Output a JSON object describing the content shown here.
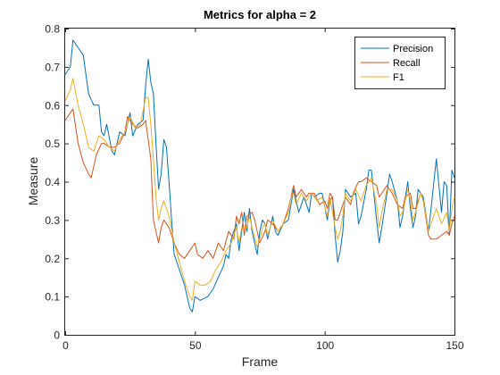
{
  "chart_data": {
    "type": "line",
    "title": "Metrics for alpha = 2",
    "xlabel": "Frame",
    "ylabel": "Measure",
    "xlim": [
      0,
      150
    ],
    "ylim": [
      0,
      0.8
    ],
    "xticks": [
      "0",
      "50",
      "100",
      "150"
    ],
    "yticks": [
      "0",
      "0.1",
      "0.2",
      "0.3",
      "0.4",
      "0.5",
      "0.6",
      "0.7",
      "0.8"
    ],
    "grid": false,
    "legend_position": "top-right",
    "series": [
      {
        "name": "Precision",
        "color": "#0072bd",
        "points": [
          [
            0,
            0.68
          ],
          [
            2,
            0.7
          ],
          [
            3,
            0.77
          ],
          [
            5,
            0.75
          ],
          [
            7,
            0.73
          ],
          [
            9,
            0.63
          ],
          [
            11,
            0.6
          ],
          [
            13,
            0.6
          ],
          [
            14,
            0.53
          ],
          [
            15,
            0.52
          ],
          [
            16,
            0.55
          ],
          [
            18,
            0.48
          ],
          [
            19,
            0.47
          ],
          [
            21,
            0.53
          ],
          [
            23,
            0.52
          ],
          [
            25,
            0.58
          ],
          [
            26,
            0.52
          ],
          [
            28,
            0.55
          ],
          [
            30,
            0.56
          ],
          [
            31,
            0.65
          ],
          [
            32,
            0.72
          ],
          [
            33,
            0.66
          ],
          [
            34,
            0.63
          ],
          [
            35,
            0.5
          ],
          [
            36,
            0.38
          ],
          [
            37,
            0.42
          ],
          [
            38,
            0.51
          ],
          [
            39,
            0.49
          ],
          [
            40,
            0.4
          ],
          [
            41,
            0.3
          ],
          [
            42,
            0.21
          ],
          [
            44,
            0.17
          ],
          [
            46,
            0.13
          ],
          [
            48,
            0.07
          ],
          [
            49,
            0.06
          ],
          [
            50,
            0.1
          ],
          [
            52,
            0.09
          ],
          [
            55,
            0.1
          ],
          [
            57,
            0.12
          ],
          [
            59,
            0.15
          ],
          [
            61,
            0.18
          ],
          [
            62,
            0.21
          ],
          [
            63,
            0.2
          ],
          [
            64,
            0.25
          ],
          [
            66,
            0.29
          ],
          [
            67,
            0.22
          ],
          [
            68,
            0.27
          ],
          [
            69,
            0.32
          ],
          [
            70,
            0.27
          ],
          [
            71,
            0.33
          ],
          [
            72,
            0.27
          ],
          [
            74,
            0.21
          ],
          [
            75,
            0.27
          ],
          [
            76,
            0.3
          ],
          [
            77,
            0.29
          ],
          [
            78,
            0.25
          ],
          [
            80,
            0.31
          ],
          [
            81,
            0.27
          ],
          [
            82,
            0.26
          ],
          [
            84,
            0.29
          ],
          [
            86,
            0.3
          ],
          [
            88,
            0.38
          ],
          [
            90,
            0.32
          ],
          [
            92,
            0.36
          ],
          [
            94,
            0.32
          ],
          [
            95,
            0.37
          ],
          [
            96,
            0.36
          ],
          [
            98,
            0.37
          ],
          [
            99,
            0.37
          ],
          [
            101,
            0.3
          ],
          [
            102,
            0.35
          ],
          [
            103,
            0.36
          ],
          [
            104,
            0.26
          ],
          [
            105,
            0.19
          ],
          [
            106,
            0.22
          ],
          [
            107,
            0.27
          ],
          [
            108,
            0.38
          ],
          [
            110,
            0.36
          ],
          [
            112,
            0.37
          ],
          [
            113,
            0.29
          ],
          [
            114,
            0.31
          ],
          [
            116,
            0.38
          ],
          [
            117,
            0.43
          ],
          [
            118,
            0.43
          ],
          [
            120,
            0.3
          ],
          [
            121,
            0.24
          ],
          [
            122,
            0.28
          ],
          [
            124,
            0.37
          ],
          [
            125,
            0.42
          ],
          [
            126,
            0.4
          ],
          [
            128,
            0.35
          ],
          [
            129,
            0.28
          ],
          [
            130,
            0.31
          ],
          [
            132,
            0.4
          ],
          [
            133,
            0.33
          ],
          [
            134,
            0.28
          ],
          [
            135,
            0.31
          ],
          [
            136,
            0.38
          ],
          [
            138,
            0.36
          ],
          [
            140,
            0.27
          ],
          [
            141,
            0.33
          ],
          [
            143,
            0.46
          ],
          [
            145,
            0.32
          ],
          [
            146,
            0.4
          ],
          [
            147,
            0.39
          ],
          [
            148,
            0.26
          ],
          [
            149,
            0.43
          ],
          [
            150,
            0.41
          ]
        ]
      },
      {
        "name": "Recall",
        "color": "#d95319",
        "points": [
          [
            0,
            0.56
          ],
          [
            2,
            0.58
          ],
          [
            3,
            0.59
          ],
          [
            5,
            0.5
          ],
          [
            7,
            0.45
          ],
          [
            9,
            0.42
          ],
          [
            10,
            0.41
          ],
          [
            12,
            0.47
          ],
          [
            14,
            0.5
          ],
          [
            15,
            0.5
          ],
          [
            17,
            0.49
          ],
          [
            19,
            0.49
          ],
          [
            21,
            0.5
          ],
          [
            23,
            0.53
          ],
          [
            24,
            0.57
          ],
          [
            26,
            0.55
          ],
          [
            28,
            0.54
          ],
          [
            30,
            0.55
          ],
          [
            31,
            0.56
          ],
          [
            33,
            0.46
          ],
          [
            34,
            0.3
          ],
          [
            35,
            0.27
          ],
          [
            36,
            0.24
          ],
          [
            37,
            0.28
          ],
          [
            38,
            0.3
          ],
          [
            40,
            0.28
          ],
          [
            42,
            0.24
          ],
          [
            44,
            0.21
          ],
          [
            46,
            0.2
          ],
          [
            48,
            0.22
          ],
          [
            50,
            0.24
          ],
          [
            51,
            0.21
          ],
          [
            53,
            0.2
          ],
          [
            55,
            0.22
          ],
          [
            57,
            0.2
          ],
          [
            59,
            0.24
          ],
          [
            61,
            0.22
          ],
          [
            63,
            0.27
          ],
          [
            65,
            0.25
          ],
          [
            66,
            0.31
          ],
          [
            67,
            0.29
          ],
          [
            68,
            0.32
          ],
          [
            69,
            0.26
          ],
          [
            70,
            0.31
          ],
          [
            72,
            0.32
          ],
          [
            73,
            0.3
          ],
          [
            74,
            0.27
          ],
          [
            75,
            0.24
          ],
          [
            77,
            0.27
          ],
          [
            78,
            0.3
          ],
          [
            80,
            0.29
          ],
          [
            82,
            0.27
          ],
          [
            84,
            0.29
          ],
          [
            86,
            0.33
          ],
          [
            87,
            0.36
          ],
          [
            88,
            0.39
          ],
          [
            89,
            0.36
          ],
          [
            91,
            0.38
          ],
          [
            93,
            0.36
          ],
          [
            94,
            0.37
          ],
          [
            96,
            0.37
          ],
          [
            98,
            0.34
          ],
          [
            100,
            0.35
          ],
          [
            101,
            0.33
          ],
          [
            102,
            0.37
          ],
          [
            103,
            0.36
          ],
          [
            104,
            0.3
          ],
          [
            105,
            0.3
          ],
          [
            106,
            0.32
          ],
          [
            107,
            0.34
          ],
          [
            108,
            0.36
          ],
          [
            110,
            0.34
          ],
          [
            111,
            0.37
          ],
          [
            113,
            0.4
          ],
          [
            114,
            0.4
          ],
          [
            116,
            0.41
          ],
          [
            118,
            0.4
          ],
          [
            120,
            0.39
          ],
          [
            121,
            0.36
          ],
          [
            122,
            0.37
          ],
          [
            124,
            0.39
          ],
          [
            126,
            0.37
          ],
          [
            128,
            0.34
          ],
          [
            130,
            0.33
          ],
          [
            131,
            0.36
          ],
          [
            133,
            0.37
          ],
          [
            134,
            0.33
          ],
          [
            135,
            0.33
          ],
          [
            137,
            0.37
          ],
          [
            138,
            0.35
          ],
          [
            140,
            0.26
          ],
          [
            141,
            0.25
          ],
          [
            143,
            0.25
          ],
          [
            145,
            0.26
          ],
          [
            147,
            0.27
          ],
          [
            148,
            0.26
          ],
          [
            149,
            0.29
          ],
          [
            150,
            0.31
          ]
        ]
      },
      {
        "name": "F1",
        "color": "#edb120",
        "points": [
          [
            0,
            0.61
          ],
          [
            2,
            0.64
          ],
          [
            3,
            0.67
          ],
          [
            5,
            0.6
          ],
          [
            7,
            0.55
          ],
          [
            9,
            0.49
          ],
          [
            11,
            0.48
          ],
          [
            13,
            0.52
          ],
          [
            15,
            0.51
          ],
          [
            17,
            0.49
          ],
          [
            19,
            0.48
          ],
          [
            21,
            0.51
          ],
          [
            23,
            0.53
          ],
          [
            25,
            0.57
          ],
          [
            27,
            0.54
          ],
          [
            29,
            0.55
          ],
          [
            31,
            0.62
          ],
          [
            32,
            0.62
          ],
          [
            33,
            0.55
          ],
          [
            34,
            0.46
          ],
          [
            35,
            0.36
          ],
          [
            36,
            0.3
          ],
          [
            37,
            0.33
          ],
          [
            38,
            0.35
          ],
          [
            40,
            0.31
          ],
          [
            42,
            0.24
          ],
          [
            44,
            0.19
          ],
          [
            46,
            0.14
          ],
          [
            48,
            0.1
          ],
          [
            49,
            0.09
          ],
          [
            50,
            0.14
          ],
          [
            52,
            0.13
          ],
          [
            54,
            0.13
          ],
          [
            56,
            0.14
          ],
          [
            58,
            0.17
          ],
          [
            60,
            0.19
          ],
          [
            62,
            0.22
          ],
          [
            64,
            0.24
          ],
          [
            66,
            0.28
          ],
          [
            67,
            0.24
          ],
          [
            68,
            0.28
          ],
          [
            69,
            0.28
          ],
          [
            70,
            0.28
          ],
          [
            71,
            0.31
          ],
          [
            72,
            0.28
          ],
          [
            74,
            0.23
          ],
          [
            75,
            0.25
          ],
          [
            76,
            0.28
          ],
          [
            77,
            0.29
          ],
          [
            78,
            0.26
          ],
          [
            80,
            0.3
          ],
          [
            82,
            0.27
          ],
          [
            84,
            0.29
          ],
          [
            86,
            0.32
          ],
          [
            87,
            0.36
          ],
          [
            88,
            0.37
          ],
          [
            89,
            0.34
          ],
          [
            91,
            0.37
          ],
          [
            93,
            0.35
          ],
          [
            95,
            0.37
          ],
          [
            97,
            0.35
          ],
          [
            99,
            0.36
          ],
          [
            101,
            0.31
          ],
          [
            102,
            0.36
          ],
          [
            104,
            0.28
          ],
          [
            105,
            0.25
          ],
          [
            106,
            0.27
          ],
          [
            107,
            0.31
          ],
          [
            108,
            0.37
          ],
          [
            110,
            0.35
          ],
          [
            112,
            0.38
          ],
          [
            114,
            0.35
          ],
          [
            116,
            0.39
          ],
          [
            118,
            0.41
          ],
          [
            120,
            0.34
          ],
          [
            121,
            0.28
          ],
          [
            122,
            0.32
          ],
          [
            124,
            0.38
          ],
          [
            126,
            0.38
          ],
          [
            128,
            0.35
          ],
          [
            129,
            0.31
          ],
          [
            130,
            0.32
          ],
          [
            132,
            0.38
          ],
          [
            133,
            0.35
          ],
          [
            134,
            0.3
          ],
          [
            135,
            0.32
          ],
          [
            137,
            0.37
          ],
          [
            138,
            0.35
          ],
          [
            140,
            0.27
          ],
          [
            141,
            0.29
          ],
          [
            143,
            0.33
          ],
          [
            145,
            0.29
          ],
          [
            147,
            0.32
          ],
          [
            148,
            0.27
          ],
          [
            149,
            0.33
          ],
          [
            150,
            0.36
          ]
        ]
      }
    ]
  }
}
